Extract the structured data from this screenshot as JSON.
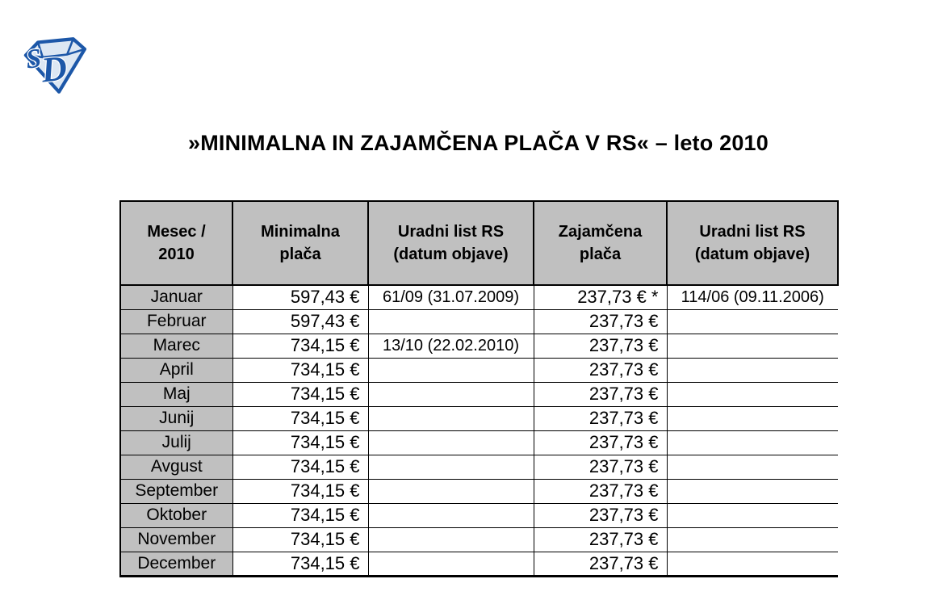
{
  "page": {
    "title": "»MINIMALNA IN ZAJAMČENA PLAČA V RS« – leto 2010",
    "background_color": "#ffffff"
  },
  "logo": {
    "monogram": "SD",
    "shape": "diamond-gem",
    "primary_color": "#1c57a8",
    "fill_color": "#dce7f3"
  },
  "table": {
    "header_bg_color": "#c0c0c0",
    "border_color": "#000000",
    "headers": [
      {
        "line1": "Mesec /",
        "line2": "2010"
      },
      {
        "line1": "Minimalna",
        "line2": "plača"
      },
      {
        "line1": "Uradni list RS",
        "line2": "(datum objave)"
      },
      {
        "line1": "Zajamčena",
        "line2": "plača"
      },
      {
        "line1": "Uradni list RS",
        "line2": "(datum objave)"
      }
    ],
    "rows": [
      {
        "month": "Januar",
        "minimalna_placa": "597,43 €",
        "uradni_list_min": "61/09 (31.07.2009)",
        "zajamcena_placa": "237,73 € *",
        "uradni_list_zajamcena": "114/06 (09.11.2006)"
      },
      {
        "month": "Februar",
        "minimalna_placa": "597,43 €",
        "uradni_list_min": "",
        "zajamcena_placa": "237,73 €",
        "uradni_list_zajamcena": ""
      },
      {
        "month": "Marec",
        "minimalna_placa": "734,15 €",
        "uradni_list_min": "13/10 (22.02.2010)",
        "zajamcena_placa": "237,73 €",
        "uradni_list_zajamcena": ""
      },
      {
        "month": "April",
        "minimalna_placa": "734,15 €",
        "uradni_list_min": "",
        "zajamcena_placa": "237,73 €",
        "uradni_list_zajamcena": ""
      },
      {
        "month": "Maj",
        "minimalna_placa": "734,15 €",
        "uradni_list_min": "",
        "zajamcena_placa": "237,73 €",
        "uradni_list_zajamcena": ""
      },
      {
        "month": "Junij",
        "minimalna_placa": "734,15 €",
        "uradni_list_min": "",
        "zajamcena_placa": "237,73 €",
        "uradni_list_zajamcena": ""
      },
      {
        "month": "Julij",
        "minimalna_placa": "734,15 €",
        "uradni_list_min": "",
        "zajamcena_placa": "237,73 €",
        "uradni_list_zajamcena": ""
      },
      {
        "month": "Avgust",
        "minimalna_placa": "734,15 €",
        "uradni_list_min": "",
        "zajamcena_placa": "237,73 €",
        "uradni_list_zajamcena": ""
      },
      {
        "month": "September",
        "minimalna_placa": "734,15 €",
        "uradni_list_min": "",
        "zajamcena_placa": "237,73 €",
        "uradni_list_zajamcena": ""
      },
      {
        "month": "Oktober",
        "minimalna_placa": "734,15 €",
        "uradni_list_min": "",
        "zajamcena_placa": "237,73 €",
        "uradni_list_zajamcena": ""
      },
      {
        "month": "November",
        "minimalna_placa": "734,15 €",
        "uradni_list_min": "",
        "zajamcena_placa": "237,73 €",
        "uradni_list_zajamcena": ""
      },
      {
        "month": "December",
        "minimalna_placa": "734,15 €",
        "uradni_list_min": "",
        "zajamcena_placa": "237,73 €",
        "uradni_list_zajamcena": ""
      }
    ]
  }
}
